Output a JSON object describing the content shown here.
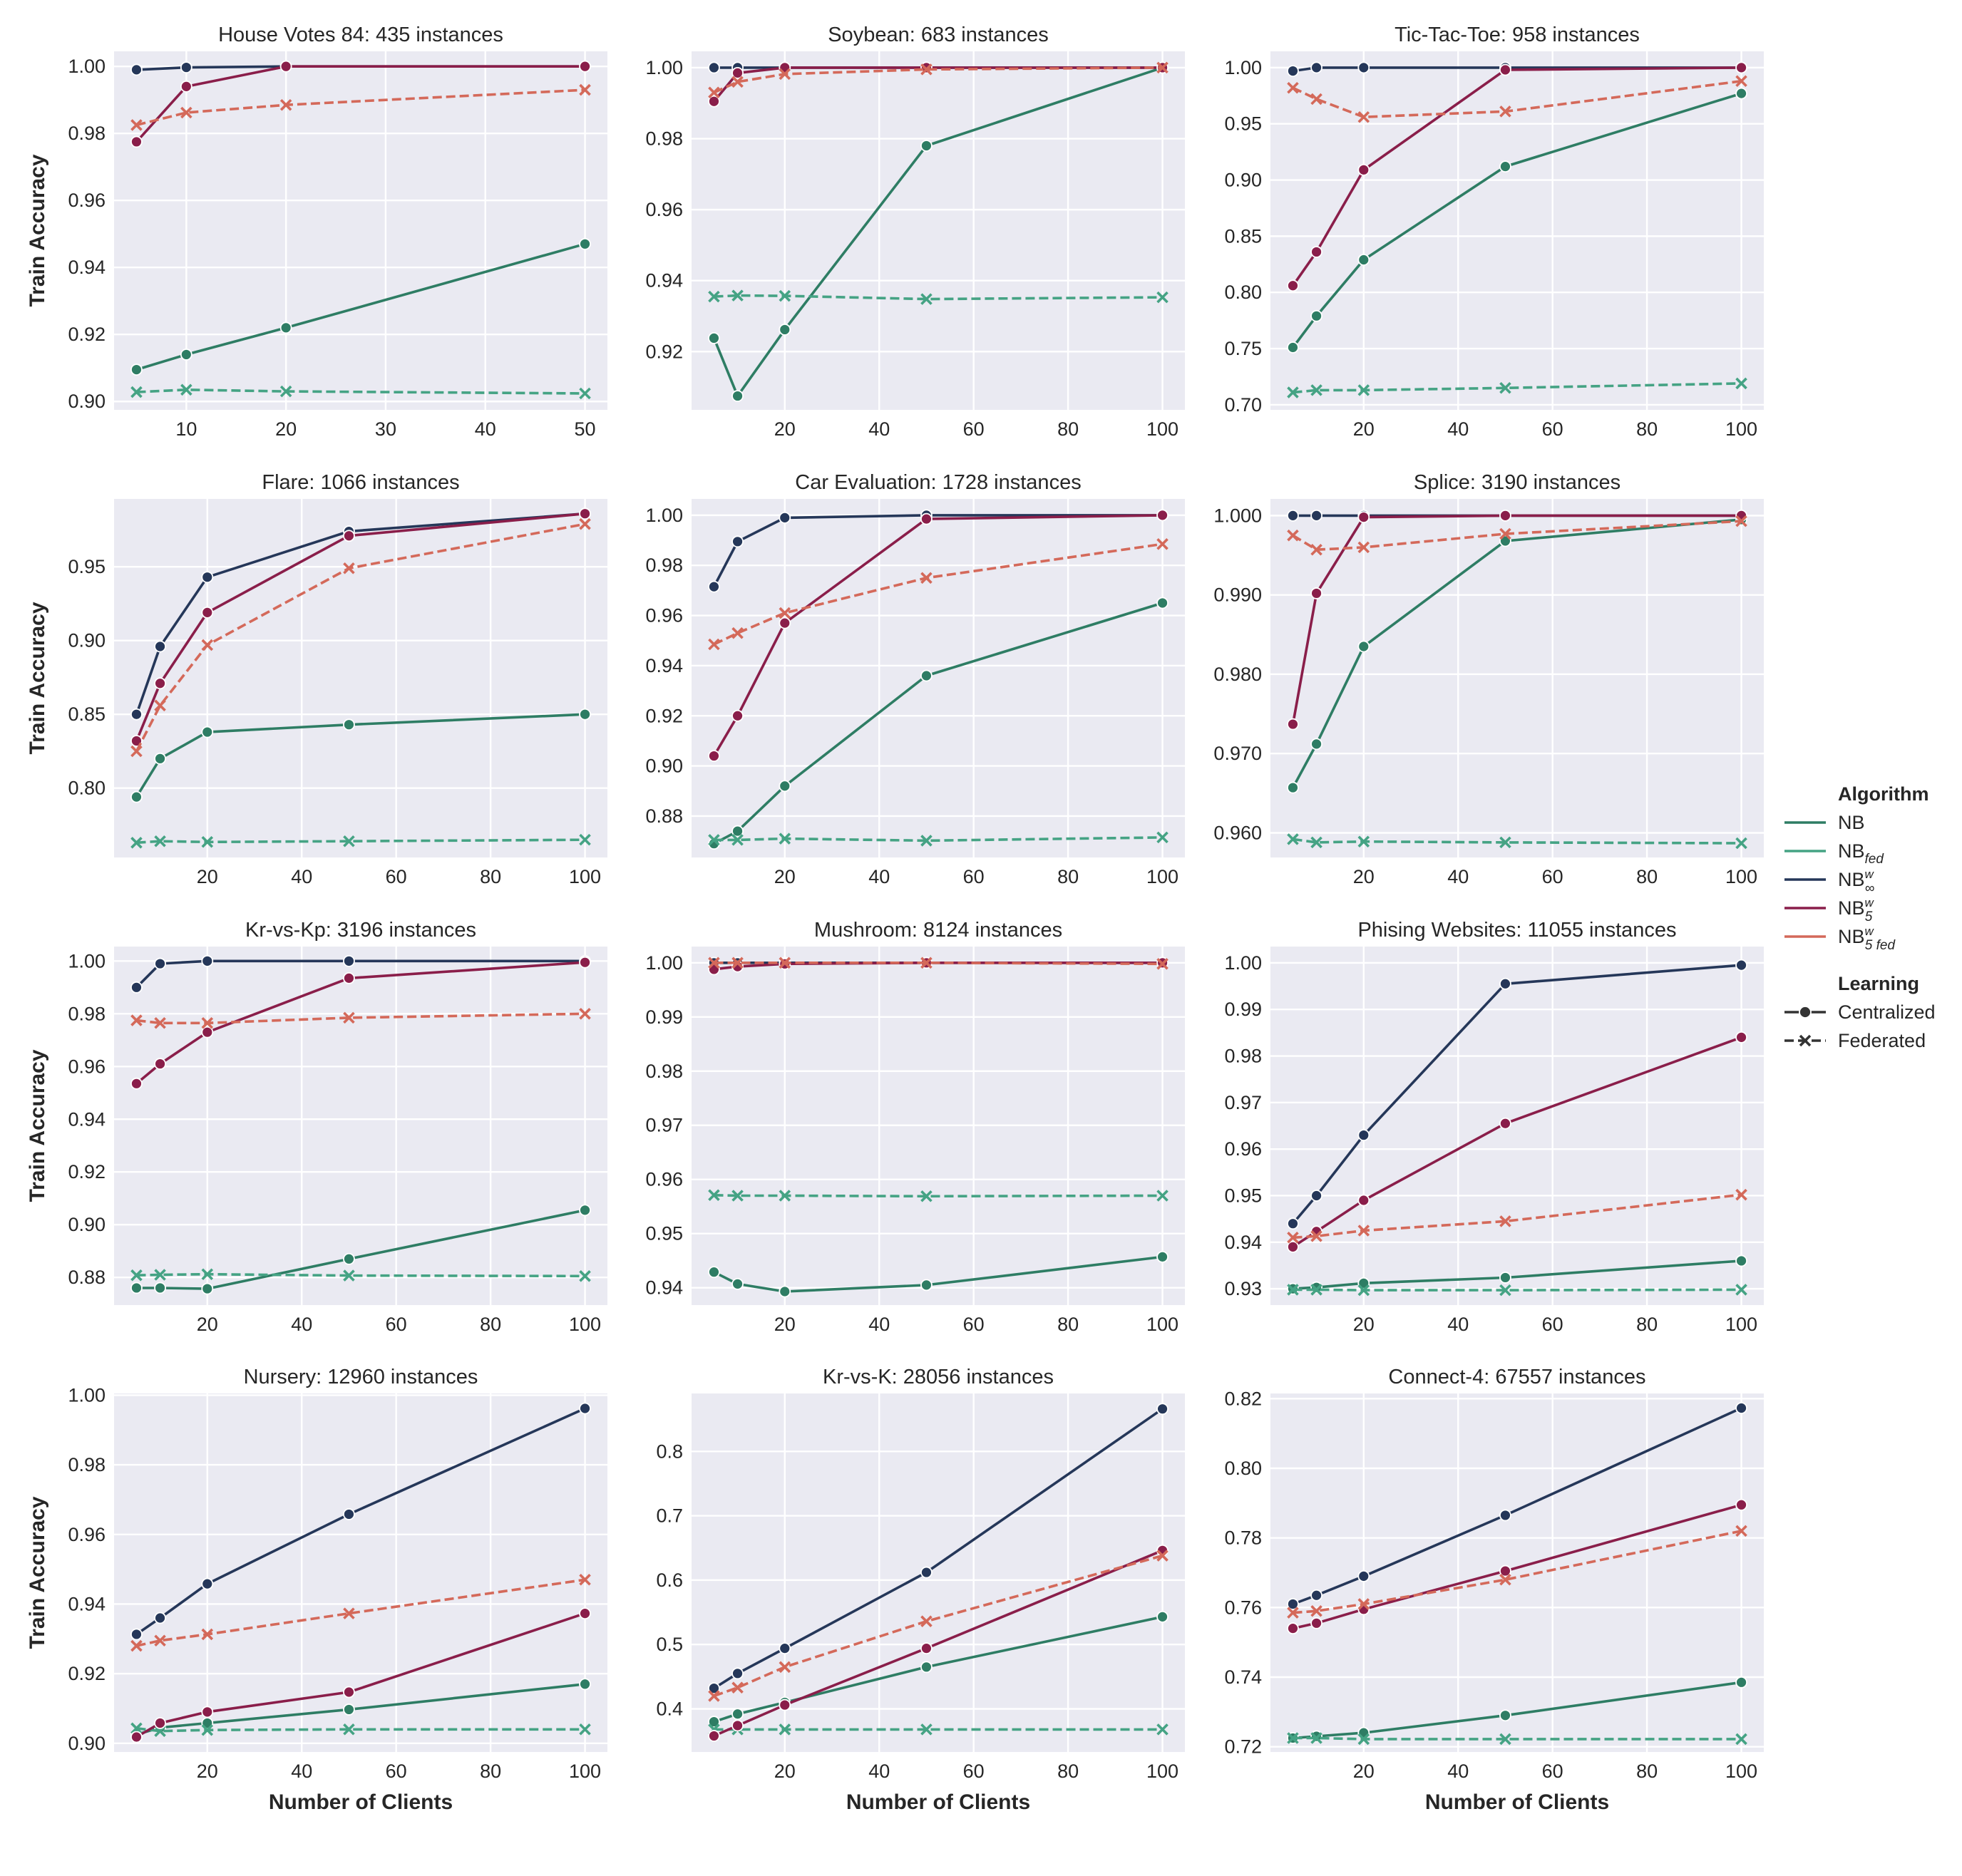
{
  "colors": {
    "panel_bg": "#eaeaf2",
    "grid": "#ffffff",
    "NB": "#2e7d64",
    "NB_fed": "#45a384",
    "NB_w_inf": "#253759",
    "NB_w_5": "#8a1e4a",
    "NB_w_5_fed": "#d4695a"
  },
  "legend": {
    "algorithm_title": "Algorithm",
    "learning_title": "Learning",
    "items": [
      {
        "key": "NB",
        "base": "NB",
        "sup": "",
        "sub": ""
      },
      {
        "key": "NB_fed",
        "base": "NB",
        "sup": "",
        "sub": "fed"
      },
      {
        "key": "NB_w_inf",
        "base": "NB",
        "sup": "w",
        "sub": "∞"
      },
      {
        "key": "NB_w_5",
        "base": "NB",
        "sup": "w",
        "sub": "5"
      },
      {
        "key": "NB_w_5_fed",
        "base": "NB",
        "sup": "w",
        "sub": "5 fed"
      }
    ],
    "learning_items": [
      {
        "label": "Centralized",
        "style": "solid"
      },
      {
        "label": "Federated",
        "style": "dashed"
      }
    ]
  },
  "axis_labels": {
    "x": "Number of Clients",
    "y": "Train Accuracy"
  },
  "chart_data": [
    {
      "type": "line",
      "title": "House Votes 84: 435 instances",
      "x": [
        5,
        10,
        20,
        50
      ],
      "xlim": [
        2.75,
        52.25
      ],
      "xticks": [
        10,
        20,
        30,
        40,
        50
      ],
      "ylim": [
        0.8975,
        1.0045
      ],
      "yticks": [
        0.9,
        0.92,
        0.94,
        0.96,
        0.98,
        1.0
      ],
      "ydec": 2,
      "series": [
        {
          "key": "NB",
          "values": [
            0.9095,
            0.914,
            0.922,
            0.947
          ]
        },
        {
          "key": "NB_fed",
          "values": [
            0.9028,
            0.9035,
            0.903,
            0.9024
          ]
        },
        {
          "key": "NB_w_inf",
          "values": [
            0.999,
            0.9997,
            1.0,
            1.0
          ]
        },
        {
          "key": "NB_w_5",
          "values": [
            0.9775,
            0.994,
            1.0,
            1.0
          ]
        },
        {
          "key": "NB_w_5_fed",
          "values": [
            0.9825,
            0.9862,
            0.9885,
            0.993
          ]
        }
      ]
    },
    {
      "type": "line",
      "title": "Soybean: 683 instances",
      "x": [
        5,
        10,
        20,
        50,
        100
      ],
      "xlim": [
        0.25,
        104.75
      ],
      "xticks": [
        20,
        40,
        60,
        80,
        100
      ],
      "ylim": [
        0.9036,
        1.0046
      ],
      "yticks": [
        0.92,
        0.94,
        0.96,
        0.98,
        1.0
      ],
      "ydec": 2,
      "series": [
        {
          "key": "NB",
          "values": [
            0.9238,
            0.9075,
            0.9262,
            0.978,
            1.0
          ]
        },
        {
          "key": "NB_fed",
          "values": [
            0.9355,
            0.9358,
            0.9357,
            0.9348,
            0.9353
          ]
        },
        {
          "key": "NB_w_inf",
          "values": [
            1.0,
            1.0,
            1.0,
            1.0,
            1.0
          ]
        },
        {
          "key": "NB_w_5",
          "values": [
            0.9905,
            0.9985,
            1.0,
            1.0,
            1.0
          ]
        },
        {
          "key": "NB_w_5_fed",
          "values": [
            0.993,
            0.996,
            0.9982,
            0.9995,
            1.0
          ]
        }
      ]
    },
    {
      "type": "line",
      "title": "Tic-Tac-Toe: 958 instances",
      "x": [
        5,
        10,
        20,
        50,
        100
      ],
      "xlim": [
        0.25,
        104.75
      ],
      "xticks": [
        20,
        40,
        60,
        80,
        100
      ],
      "ylim": [
        0.6955,
        1.0145
      ],
      "yticks": [
        0.7,
        0.75,
        0.8,
        0.85,
        0.9,
        0.95,
        1.0
      ],
      "ydec": 2,
      "series": [
        {
          "key": "NB",
          "values": [
            0.751,
            0.779,
            0.829,
            0.912,
            0.977
          ]
        },
        {
          "key": "NB_fed",
          "values": [
            0.711,
            0.713,
            0.713,
            0.715,
            0.719
          ]
        },
        {
          "key": "NB_w_inf",
          "values": [
            0.997,
            1.0,
            1.0,
            1.0,
            1.0
          ]
        },
        {
          "key": "NB_w_5",
          "values": [
            0.806,
            0.836,
            0.909,
            0.998,
            1.0
          ]
        },
        {
          "key": "NB_w_5_fed",
          "values": [
            0.982,
            0.972,
            0.956,
            0.961,
            0.988
          ]
        }
      ]
    },
    {
      "type": "line",
      "title": "Flare: 1066 instances",
      "x": [
        5,
        10,
        20,
        50,
        100
      ],
      "xlim": [
        0.25,
        104.75
      ],
      "xticks": [
        20,
        40,
        60,
        80,
        100
      ],
      "ylim": [
        0.753,
        0.996
      ],
      "yticks": [
        0.8,
        0.85,
        0.9,
        0.95
      ],
      "ydec": 2,
      "series": [
        {
          "key": "NB",
          "values": [
            0.794,
            0.82,
            0.838,
            0.843,
            0.85
          ]
        },
        {
          "key": "NB_fed",
          "values": [
            0.763,
            0.764,
            0.7635,
            0.764,
            0.765
          ]
        },
        {
          "key": "NB_w_inf",
          "values": [
            0.85,
            0.896,
            0.943,
            0.974,
            0.986
          ]
        },
        {
          "key": "NB_w_5",
          "values": [
            0.832,
            0.871,
            0.919,
            0.971,
            0.986
          ]
        },
        {
          "key": "NB_w_5_fed",
          "values": [
            0.825,
            0.856,
            0.897,
            0.949,
            0.979
          ]
        }
      ]
    },
    {
      "type": "line",
      "title": "Car Evaluation: 1728 instances",
      "x": [
        5,
        10,
        20,
        50,
        100
      ],
      "xlim": [
        0.25,
        104.75
      ],
      "xticks": [
        20,
        40,
        60,
        80,
        100
      ],
      "ylim": [
        0.8635,
        1.0065
      ],
      "yticks": [
        0.88,
        0.9,
        0.92,
        0.94,
        0.96,
        0.98,
        1.0
      ],
      "ydec": 2,
      "series": [
        {
          "key": "NB",
          "values": [
            0.869,
            0.874,
            0.892,
            0.936,
            0.965
          ]
        },
        {
          "key": "NB_fed",
          "values": [
            0.8705,
            0.8705,
            0.871,
            0.8702,
            0.8715
          ]
        },
        {
          "key": "NB_w_inf",
          "values": [
            0.9715,
            0.9895,
            0.999,
            1.0,
            1.0
          ]
        },
        {
          "key": "NB_w_5",
          "values": [
            0.904,
            0.92,
            0.957,
            0.9985,
            1.0
          ]
        },
        {
          "key": "NB_w_5_fed",
          "values": [
            0.9485,
            0.953,
            0.961,
            0.975,
            0.9885
          ]
        }
      ]
    },
    {
      "type": "line",
      "title": "Splice: 3190 instances",
      "x": [
        5,
        10,
        20,
        50,
        100
      ],
      "xlim": [
        0.25,
        104.75
      ],
      "xticks": [
        20,
        40,
        60,
        80,
        100
      ],
      "ylim": [
        0.9569,
        1.0021
      ],
      "yticks": [
        0.96,
        0.97,
        0.98,
        0.99,
        1.0
      ],
      "ydec": 3,
      "series": [
        {
          "key": "NB",
          "values": [
            0.9657,
            0.9712,
            0.9835,
            0.9968,
            0.9995
          ]
        },
        {
          "key": "NB_fed",
          "values": [
            0.9592,
            0.9588,
            0.9589,
            0.9588,
            0.9587
          ]
        },
        {
          "key": "NB_w_inf",
          "values": [
            1.0,
            1.0,
            1.0,
            1.0,
            1.0
          ]
        },
        {
          "key": "NB_w_5",
          "values": [
            0.9737,
            0.9902,
            0.9998,
            1.0,
            1.0
          ]
        },
        {
          "key": "NB_w_5_fed",
          "values": [
            0.9975,
            0.9957,
            0.996,
            0.9977,
            0.9993
          ]
        }
      ]
    },
    {
      "type": "line",
      "title": "Kr-vs-Kp: 3196 instances",
      "x": [
        5,
        10,
        20,
        50,
        100
      ],
      "xlim": [
        0.25,
        104.75
      ],
      "xticks": [
        20,
        40,
        60,
        80,
        100
      ],
      "ylim": [
        0.8695,
        1.0055
      ],
      "yticks": [
        0.88,
        0.9,
        0.92,
        0.94,
        0.96,
        0.98,
        1.0
      ],
      "ydec": 2,
      "series": [
        {
          "key": "NB",
          "values": [
            0.876,
            0.876,
            0.8757,
            0.887,
            0.9055
          ]
        },
        {
          "key": "NB_fed",
          "values": [
            0.8808,
            0.881,
            0.8812,
            0.8807,
            0.8805
          ]
        },
        {
          "key": "NB_w_inf",
          "values": [
            0.99,
            0.999,
            1.0,
            1.0,
            1.0
          ]
        },
        {
          "key": "NB_w_5",
          "values": [
            0.9535,
            0.961,
            0.973,
            0.9935,
            0.9995
          ]
        },
        {
          "key": "NB_w_5_fed",
          "values": [
            0.9775,
            0.9765,
            0.9765,
            0.9785,
            0.98
          ]
        }
      ]
    },
    {
      "type": "line",
      "title": "Mushroom: 8124 instances",
      "x": [
        5,
        10,
        20,
        50,
        100
      ],
      "xlim": [
        0.25,
        104.75
      ],
      "xticks": [
        20,
        40,
        60,
        80,
        100
      ],
      "ylim": [
        0.9368,
        1.003
      ],
      "yticks": [
        0.94,
        0.95,
        0.96,
        0.97,
        0.98,
        0.99,
        1.0
      ],
      "ydec": 2,
      "series": [
        {
          "key": "NB",
          "values": [
            0.9429,
            0.9407,
            0.9393,
            0.9405,
            0.9457
          ]
        },
        {
          "key": "NB_fed",
          "values": [
            0.9571,
            0.957,
            0.957,
            0.9569,
            0.957
          ]
        },
        {
          "key": "NB_w_inf",
          "values": [
            1.0,
            1.0,
            1.0,
            1.0,
            1.0
          ]
        },
        {
          "key": "NB_w_5",
          "values": [
            0.9988,
            0.9993,
            0.9998,
            1.0,
            1.0
          ]
        },
        {
          "key": "NB_w_5_fed",
          "values": [
            1.0,
            1.0,
            1.0,
            1.0,
            0.9998
          ]
        }
      ]
    },
    {
      "type": "line",
      "title": "Phising Websites: 11055 instances",
      "x": [
        5,
        10,
        20,
        50,
        100
      ],
      "xlim": [
        0.25,
        104.75
      ],
      "xticks": [
        20,
        40,
        60,
        80,
        100
      ],
      "ylim": [
        0.9265,
        1.0035
      ],
      "yticks": [
        0.93,
        0.94,
        0.95,
        0.96,
        0.97,
        0.98,
        0.99,
        1.0
      ],
      "ydec": 2,
      "series": [
        {
          "key": "NB",
          "values": [
            0.93,
            0.9303,
            0.9312,
            0.9324,
            0.936
          ]
        },
        {
          "key": "NB_fed",
          "values": [
            0.9298,
            0.9298,
            0.9297,
            0.9297,
            0.9298
          ]
        },
        {
          "key": "NB_w_inf",
          "values": [
            0.944,
            0.95,
            0.963,
            0.9955,
            0.9995
          ]
        },
        {
          "key": "NB_w_5",
          "values": [
            0.939,
            0.9423,
            0.949,
            0.9655,
            0.984
          ]
        },
        {
          "key": "NB_w_5_fed",
          "values": [
            0.941,
            0.9413,
            0.9425,
            0.9445,
            0.9502
          ]
        }
      ]
    },
    {
      "type": "line",
      "title": "Nursery: 12960 instances",
      "x": [
        5,
        10,
        20,
        50,
        100
      ],
      "xlim": [
        0.25,
        104.75
      ],
      "xticks": [
        20,
        40,
        60,
        80,
        100
      ],
      "ylim": [
        0.8975,
        1.0005
      ],
      "yticks": [
        0.9,
        0.92,
        0.94,
        0.96,
        0.98,
        1.0
      ],
      "ydec": 2,
      "series": [
        {
          "key": "NB",
          "values": [
            0.9025,
            0.9045,
            0.9058,
            0.9097,
            0.917
          ]
        },
        {
          "key": "NB_fed",
          "values": [
            0.9043,
            0.9035,
            0.9038,
            0.904,
            0.904
          ]
        },
        {
          "key": "NB_w_inf",
          "values": [
            0.9313,
            0.936,
            0.9458,
            0.9658,
            0.9962
          ]
        },
        {
          "key": "NB_w_5",
          "values": [
            0.9018,
            0.9058,
            0.909,
            0.9147,
            0.9373
          ]
        },
        {
          "key": "NB_w_5_fed",
          "values": [
            0.928,
            0.9295,
            0.9313,
            0.9373,
            0.947
          ]
        }
      ]
    },
    {
      "type": "line",
      "title": "Kr-vs-K: 28056 instances",
      "x": [
        5,
        10,
        20,
        50,
        100
      ],
      "xlim": [
        0.25,
        104.75
      ],
      "xticks": [
        20,
        40,
        60,
        80,
        100
      ],
      "ylim": [
        0.333,
        0.89
      ],
      "yticks": [
        0.4,
        0.5,
        0.6,
        0.7,
        0.8
      ],
      "ydec": 1,
      "series": [
        {
          "key": "NB",
          "values": [
            0.38,
            0.392,
            0.41,
            0.465,
            0.543
          ]
        },
        {
          "key": "NB_fed",
          "values": [
            0.368,
            0.368,
            0.368,
            0.368,
            0.368
          ]
        },
        {
          "key": "NB_w_inf",
          "values": [
            0.432,
            0.455,
            0.494,
            0.612,
            0.866
          ]
        },
        {
          "key": "NB_w_5",
          "values": [
            0.358,
            0.374,
            0.406,
            0.494,
            0.646
          ]
        },
        {
          "key": "NB_w_5_fed",
          "values": [
            0.42,
            0.433,
            0.465,
            0.536,
            0.638
          ]
        }
      ]
    },
    {
      "type": "line",
      "title": "Connect-4: 67557 instances",
      "x": [
        5,
        10,
        20,
        50,
        100
      ],
      "xlim": [
        0.25,
        104.75
      ],
      "xticks": [
        20,
        40,
        60,
        80,
        100
      ],
      "ylim": [
        0.7185,
        0.8215
      ],
      "yticks": [
        0.72,
        0.74,
        0.76,
        0.78,
        0.8,
        0.82
      ],
      "ydec": 2,
      "series": [
        {
          "key": "NB",
          "values": [
            0.7225,
            0.723,
            0.724,
            0.729,
            0.7385
          ]
        },
        {
          "key": "NB_fed",
          "values": [
            0.7225,
            0.7225,
            0.7222,
            0.7222,
            0.7222
          ]
        },
        {
          "key": "NB_w_inf",
          "values": [
            0.761,
            0.7635,
            0.769,
            0.7865,
            0.8173
          ]
        },
        {
          "key": "NB_w_5",
          "values": [
            0.754,
            0.7555,
            0.7595,
            0.7705,
            0.7895
          ]
        },
        {
          "key": "NB_w_5_fed",
          "values": [
            0.7585,
            0.759,
            0.761,
            0.768,
            0.782
          ]
        }
      ]
    }
  ]
}
